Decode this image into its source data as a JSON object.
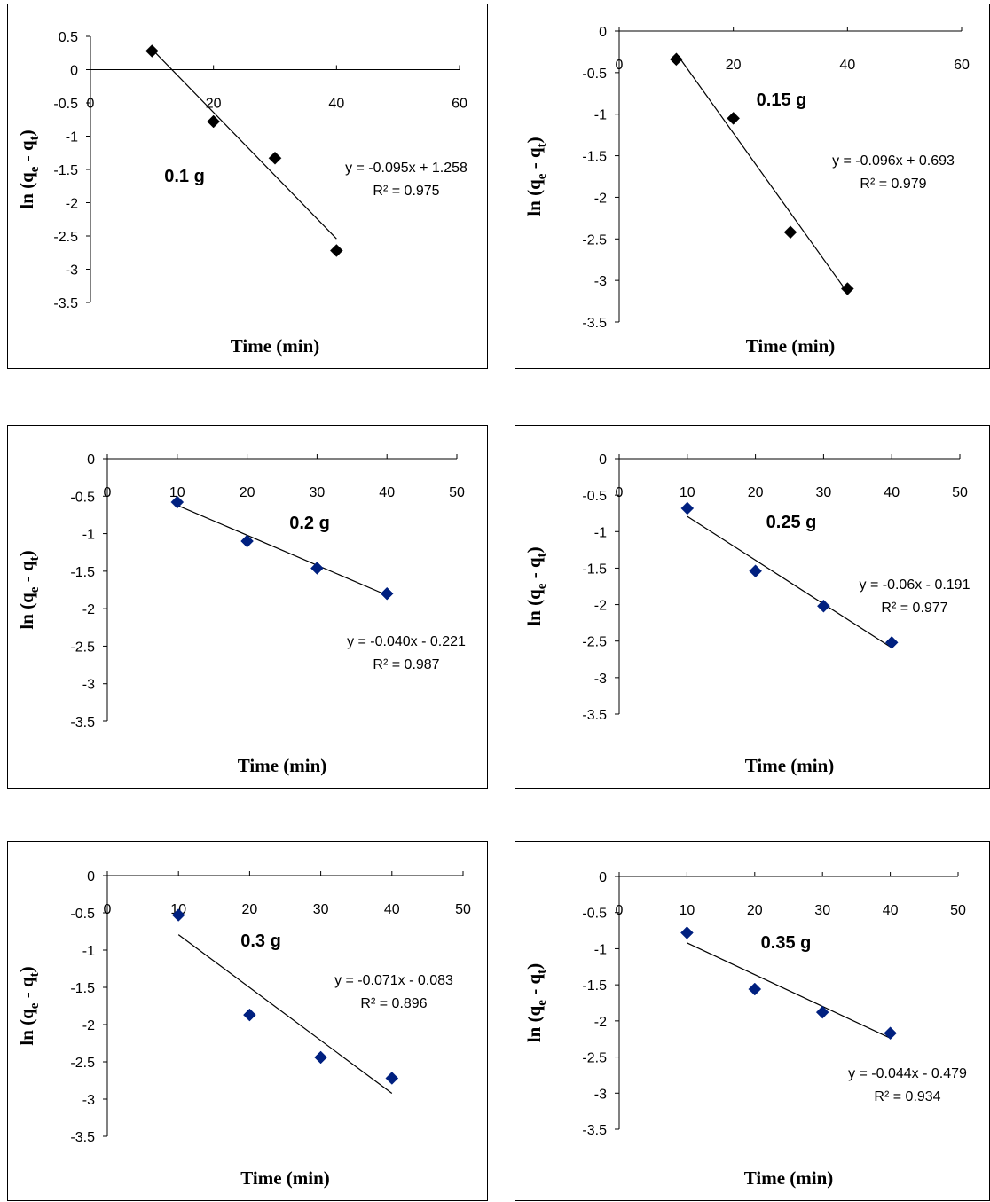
{
  "chart_data": [
    {
      "type": "scatter",
      "annotation": "0.1 g",
      "xlabel": "Time (min)",
      "ylabel": "ln (qe - qt)",
      "xlim": [
        0,
        60
      ],
      "xticks": [
        0,
        20,
        40,
        60
      ],
      "ylim": [
        -3.5,
        0.5
      ],
      "yticks": [
        0.5,
        0,
        -0.5,
        -1,
        -1.5,
        -2,
        -2.5,
        -3,
        -3.5
      ],
      "x": [
        10,
        20,
        30,
        40
      ],
      "y": [
        0.28,
        -0.78,
        -1.33,
        -2.72
      ],
      "marker_color": "#000000",
      "trendline": {
        "slope": -0.095,
        "intercept": 1.258,
        "x_range": [
          10,
          40
        ]
      },
      "equation": "y = -0.095x + 1.258",
      "r2": "R² = 0.975"
    },
    {
      "type": "scatter",
      "annotation": "0.15 g",
      "xlabel": "Time (min)",
      "ylabel": "ln (qe - qt)",
      "xlim": [
        0,
        60
      ],
      "xticks": [
        0,
        20,
        40,
        60
      ],
      "ylim": [
        -3.5,
        0
      ],
      "yticks": [
        0,
        -0.5,
        -1,
        -1.5,
        -2,
        -2.5,
        -3,
        -3.5
      ],
      "x": [
        10,
        20,
        30,
        40
      ],
      "y": [
        -0.34,
        -1.05,
        -2.42,
        -3.1
      ],
      "marker_color": "#000000",
      "trendline": {
        "slope": -0.096,
        "intercept": 0.693,
        "x_range": [
          10,
          40
        ]
      },
      "equation": "y = -0.096x + 0.693",
      "r2": "R² = 0.979"
    },
    {
      "type": "scatter",
      "annotation": "0.2 g",
      "xlabel": "Time (min)",
      "ylabel": "ln (qe - qt)",
      "xlim": [
        0,
        50
      ],
      "xticks": [
        0,
        10,
        20,
        30,
        40,
        50
      ],
      "ylim": [
        -3.5,
        0
      ],
      "yticks": [
        0,
        -0.5,
        -1,
        -1.5,
        -2,
        -2.5,
        -3,
        -3.5
      ],
      "x": [
        10,
        20,
        30,
        40
      ],
      "y": [
        -0.58,
        -1.1,
        -1.46,
        -1.8
      ],
      "marker_color": "#002080",
      "trendline": {
        "slope": -0.04,
        "intercept": -0.221,
        "x_range": [
          10,
          40
        ]
      },
      "equation": "y = -0.040x - 0.221",
      "r2": "R² = 0.987"
    },
    {
      "type": "scatter",
      "annotation": "0.25 g",
      "xlabel": "Time (min)",
      "ylabel": "ln (qe - qt)",
      "xlim": [
        0,
        50
      ],
      "xticks": [
        0,
        10,
        20,
        30,
        40,
        50
      ],
      "ylim": [
        -3.5,
        0
      ],
      "yticks": [
        0,
        -0.5,
        -1,
        -1.5,
        -2,
        -2.5,
        -3,
        -3.5
      ],
      "x": [
        10,
        20,
        30,
        40
      ],
      "y": [
        -0.68,
        -1.54,
        -2.02,
        -2.52
      ],
      "marker_color": "#002080",
      "trendline": {
        "slope": -0.06,
        "intercept": -0.191,
        "x_range": [
          10,
          40
        ]
      },
      "equation": "y = -0.06x - 0.191",
      "r2": "R² = 0.977"
    },
    {
      "type": "scatter",
      "annotation": "0.3 g",
      "xlabel": "Time (min)",
      "ylabel": "ln (qe - qt)",
      "xlim": [
        0,
        50
      ],
      "xticks": [
        0,
        10,
        20,
        30,
        40,
        50
      ],
      "ylim": [
        -3.5,
        0
      ],
      "yticks": [
        0,
        -0.5,
        -1,
        -1.5,
        -2,
        -2.5,
        -3,
        -3.5
      ],
      "x": [
        10,
        20,
        30,
        40
      ],
      "y": [
        -0.53,
        -1.87,
        -2.44,
        -2.72
      ],
      "marker_color": "#002080",
      "trendline": {
        "slope": -0.071,
        "intercept": -0.083,
        "x_range": [
          10,
          40
        ]
      },
      "equation": "y = -0.071x - 0.083",
      "r2": "R² = 0.896"
    },
    {
      "type": "scatter",
      "annotation": "0.35 g",
      "xlabel": "Time (min)",
      "ylabel": "ln (qe - qt)",
      "xlim": [
        0,
        50
      ],
      "xticks": [
        0,
        10,
        20,
        30,
        40,
        50
      ],
      "ylim": [
        -3.5,
        0
      ],
      "yticks": [
        0,
        -0.5,
        -1,
        -1.5,
        -2,
        -2.5,
        -3,
        -3.5
      ],
      "x": [
        10,
        20,
        30,
        40
      ],
      "y": [
        -0.78,
        -1.56,
        -1.88,
        -2.17
      ],
      "marker_color": "#002080",
      "trendline": {
        "slope": -0.044,
        "intercept": -0.479,
        "x_range": [
          10,
          40
        ]
      },
      "equation": "y = -0.044x - 0.479",
      "r2": "R² = 0.934"
    }
  ]
}
